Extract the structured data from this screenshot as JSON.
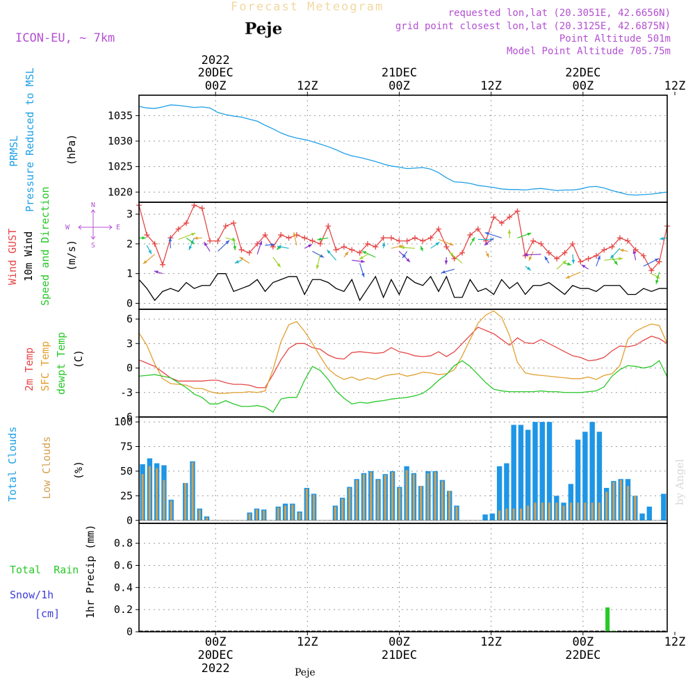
{
  "header": {
    "subtitle": "Forecast Meteogram",
    "location": "Peje",
    "model": "ICON-EU, ~ 7km",
    "requested": "requested lon,lat (20.3051E, 42.6656N)",
    "gridpoint": "grid point closest lon,lat (20.3125E, 42.6875N)",
    "point_alt": "Point Altitude 501m",
    "model_alt": "Model Point Altitude 705.75m",
    "footer_location": "Peje",
    "credit": "by Angel"
  },
  "colors": {
    "pressure": "#1ea0e6",
    "gust": "#e64646",
    "wind": "#000000",
    "temp2m": "#e64646",
    "sfc": "#e0a030",
    "dewpt": "#28c828",
    "totalcloud": "#1e96e6",
    "lowcloud": "#d2a050",
    "rain": "#28c828",
    "snow": "#3c3cdc",
    "purple": "#b450d2",
    "grid": "#999999"
  },
  "chart_data": {
    "type": "meteogram",
    "time_axis": {
      "unit": "hours from 2022-12-19 09Z",
      "range": [
        0,
        69
      ],
      "major_ticks": [
        {
          "hour": 10,
          "label": "00Z",
          "date": "20DEC",
          "year": "2022"
        },
        {
          "hour": 22,
          "label": "12Z"
        },
        {
          "hour": 34,
          "label": "00Z",
          "date": "21DEC"
        },
        {
          "hour": 46,
          "label": "12Z"
        },
        {
          "hour": 58,
          "label": "00Z",
          "date": "22DEC"
        },
        {
          "hour": 70,
          "label": "12Z"
        }
      ]
    },
    "panels": [
      {
        "id": "pressure",
        "type": "line",
        "labels": [
          "PRMSL",
          "Pressure Reduced to MSL"
        ],
        "unit": "(hPa)",
        "ylim": [
          1018,
          1039
        ],
        "yticks": [
          1020,
          1025,
          1030,
          1035
        ],
        "series": [
          {
            "name": "PRMSL",
            "values": [
              1036.8,
              1036.5,
              1036.4,
              1036.7,
              1037.1,
              1037.0,
              1036.8,
              1036.6,
              1036.7,
              1036.5,
              1035.6,
              1035.2,
              1034.9,
              1034.7,
              1034.3,
              1033.9,
              1033.1,
              1032.4,
              1031.6,
              1031.0,
              1030.6,
              1030.3,
              1029.9,
              1029.4,
              1028.9,
              1028.3,
              1027.6,
              1027.1,
              1026.8,
              1026.4,
              1026.0,
              1025.5,
              1025.1,
              1024.9,
              1024.6,
              1024.7,
              1024.8,
              1024.5,
              1023.8,
              1022.8,
              1022.0,
              1021.9,
              1021.7,
              1021.3,
              1021.1,
              1020.9,
              1020.6,
              1020.5,
              1020.5,
              1020.4,
              1020.6,
              1020.7,
              1020.5,
              1020.3,
              1020.4,
              1020.4,
              1020.6,
              1021.0,
              1021.1,
              1020.8,
              1020.3,
              1019.9,
              1019.5,
              1019.4,
              1019.5,
              1019.6,
              1019.8,
              1020.0
            ]
          }
        ]
      },
      {
        "id": "wind",
        "type": "line",
        "labels": [
          "Wind GUST",
          "10m Wind",
          "Speed and Direction"
        ],
        "unit": "(m/s)",
        "compass": {
          "n": "N",
          "s": "S",
          "e": "E",
          "w": "W"
        },
        "ylim": [
          -0.2,
          3.4
        ],
        "yticks": [
          0,
          1,
          2,
          3
        ],
        "series": [
          {
            "name": "Wind GUST",
            "values": [
              3.3,
              2.3,
              2.0,
              1.3,
              2.2,
              2.5,
              2.7,
              3.3,
              3.2,
              2.1,
              2.1,
              2.6,
              2.7,
              1.8,
              1.7,
              2.0,
              2.3,
              1.9,
              2.3,
              2.2,
              2.3,
              2.2,
              2.1,
              2.0,
              2.6,
              1.8,
              1.9,
              1.8,
              1.7,
              2.0,
              1.9,
              2.2,
              2.2,
              2.1,
              2.1,
              2.2,
              2.1,
              2.2,
              2.5,
              1.9,
              1.5,
              1.7,
              2.3,
              2.5,
              2.1,
              2.9,
              2.7,
              2.9,
              3.1,
              1.6,
              2.1,
              2.0,
              1.7,
              1.5,
              1.7,
              2.0,
              1.4,
              1.5,
              1.6,
              1.8,
              1.9,
              2.2,
              2.1,
              1.8,
              1.6,
              1.1,
              1.4,
              2.6
            ]
          },
          {
            "name": "10m Wind",
            "values": [
              0.8,
              0.5,
              0.1,
              0.4,
              0.5,
              0.4,
              0.7,
              0.5,
              0.6,
              0.6,
              1.0,
              1.0,
              0.4,
              0.5,
              0.6,
              0.8,
              0.4,
              0.7,
              0.8,
              0.9,
              0.9,
              0.3,
              0.8,
              0.8,
              0.7,
              0.5,
              0.4,
              0.8,
              0.1,
              0.5,
              0.9,
              0.2,
              0.8,
              0.3,
              0.9,
              0.7,
              0.6,
              0.9,
              0.4,
              0.9,
              0.2,
              0.2,
              0.8,
              0.4,
              0.5,
              0.3,
              0.8,
              0.5,
              0.7,
              0.3,
              0.6,
              0.6,
              0.7,
              0.5,
              0.3,
              0.6,
              0.5,
              0.5,
              0.4,
              0.6,
              0.6,
              0.6,
              0.3,
              0.3,
              0.5,
              0.4,
              0.5,
              0.5
            ]
          }
        ]
      },
      {
        "id": "temperature",
        "type": "line",
        "labels": [
          "2m Temp",
          "SFC Temp",
          "dewpt Temp"
        ],
        "unit": "(C)",
        "ylim": [
          -6,
          7.2
        ],
        "yticks": [
          -6,
          -3,
          0,
          3,
          6
        ],
        "series": [
          {
            "name": "2m Temp",
            "values": [
              1.0,
              0.6,
              0.2,
              -0.5,
              -1.2,
              -1.6,
              -1.6,
              -1.6,
              -1.6,
              -1.5,
              -1.5,
              -1.8,
              -2.0,
              -2.0,
              -2.1,
              -2.4,
              -2.4,
              -0.8,
              1.0,
              2.4,
              3.0,
              3.0,
              2.5,
              2.3,
              1.6,
              1.2,
              1.1,
              1.9,
              2.0,
              1.9,
              1.8,
              1.9,
              2.5,
              2.0,
              1.8,
              1.5,
              1.4,
              1.5,
              2.0,
              1.4,
              2.0,
              3.0,
              4.0,
              5.0,
              4.6,
              4.2,
              3.5,
              2.8,
              3.7,
              3.1,
              3.0,
              3.5,
              3.0,
              2.5,
              2.0,
              1.5,
              1.3,
              0.9,
              1.0,
              1.3,
              2.1,
              2.7,
              2.6,
              2.8,
              3.4,
              3.9,
              3.6,
              3.0
            ]
          },
          {
            "name": "SFC Temp",
            "values": [
              4.3,
              2.8,
              0.5,
              -1.3,
              -1.9,
              -2.0,
              -2.1,
              -2.5,
              -2.5,
              -2.9,
              -3.1,
              -3.1,
              -3.0,
              -3.0,
              -2.9,
              -3.0,
              -2.8,
              -0.2,
              3.2,
              5.3,
              5.7,
              4.5,
              3.0,
              1.4,
              -0.1,
              -0.9,
              -1.4,
              -1.1,
              -1.5,
              -1.2,
              -1.4,
              -1.0,
              -0.8,
              -0.7,
              -1.0,
              -0.8,
              -0.5,
              -0.6,
              -0.8,
              -0.7,
              -0.2,
              1.5,
              3.5,
              5.5,
              6.5,
              7.0,
              6.2,
              4.0,
              0.7,
              -0.6,
              -0.8,
              -0.9,
              -1.0,
              -1.1,
              -1.2,
              -1.3,
              -1.3,
              -1.1,
              -1.4,
              -0.9,
              -0.7,
              0.3,
              3.5,
              4.5,
              5.0,
              5.4,
              5.2,
              3.0
            ]
          },
          {
            "name": "dewpt Temp",
            "values": [
              -1.0,
              -0.9,
              -0.8,
              -1.0,
              -1.2,
              -1.8,
              -2.4,
              -3.2,
              -3.6,
              -4.4,
              -4.4,
              -4.0,
              -4.4,
              -4.7,
              -4.7,
              -4.6,
              -4.8,
              -5.4,
              -3.8,
              -3.6,
              -3.6,
              -1.5,
              0.2,
              -0.3,
              -1.4,
              -2.8,
              -3.7,
              -4.4,
              -4.2,
              -4.3,
              -4.1,
              -4.0,
              -3.8,
              -3.7,
              -3.6,
              -3.4,
              -3.1,
              -2.4,
              -1.5,
              -0.8,
              0.3,
              0.9,
              0.2,
              -0.8,
              -1.8,
              -2.6,
              -2.8,
              -2.9,
              -2.9,
              -2.9,
              -2.9,
              -2.8,
              -2.9,
              -2.9,
              -3.0,
              -3.0,
              -3.0,
              -2.9,
              -2.8,
              -2.3,
              -1.0,
              -0.2,
              0.3,
              0.2,
              0.0,
              0.2,
              0.9,
              -1.1
            ]
          }
        ]
      },
      {
        "id": "clouds",
        "type": "bar",
        "labels": [
          "Total Clouds",
          "Low Clouds"
        ],
        "unit": "(%)",
        "ylim": [
          -3,
          105
        ],
        "yticks": [
          0,
          25,
          50,
          75,
          100
        ],
        "series": [
          {
            "name": "Total Clouds",
            "values": [
              57,
              63,
              58,
              56,
              21,
              0,
              38,
              60,
              12,
              4,
              0,
              0,
              0,
              0,
              0,
              8,
              12,
              11,
              0,
              14,
              17,
              17,
              9,
              33,
              27,
              0,
              0,
              15,
              23,
              34,
              42,
              48,
              50,
              42,
              47,
              50,
              34,
              55,
              48,
              35,
              50,
              50,
              41,
              30,
              15,
              0,
              0,
              0,
              6,
              7,
              55,
              58,
              97,
              97,
              92,
              100,
              100,
              100,
              25,
              18,
              37,
              82,
              90,
              100,
              90,
              33,
              40,
              42,
              42,
              25,
              7,
              14,
              0,
              27
            ]
          },
          {
            "name": "Low Clouds",
            "values": [
              47,
              55,
              53,
              41,
              20,
              0,
              38,
              59,
              11,
              3,
              0,
              0,
              0,
              0,
              0,
              7,
              11,
              10,
              0,
              13,
              15,
              16,
              8,
              32,
              26,
              0,
              0,
              14,
              22,
              33,
              41,
              47,
              49,
              41,
              46,
              49,
              33,
              51,
              47,
              35,
              48,
              49,
              40,
              30,
              14,
              0,
              0,
              0,
              0,
              0,
              10,
              12,
              12,
              12,
              15,
              18,
              18,
              18,
              18,
              15,
              18,
              18,
              18,
              18,
              18,
              29,
              39,
              41,
              35,
              25,
              0,
              0,
              0,
              0
            ]
          }
        ]
      },
      {
        "id": "precip",
        "type": "bar",
        "labels": [
          "1hr Precip (mm)"
        ],
        "legend": {
          "rain": "Total  Rain",
          "snow": "Snow/1h",
          "snow_unit": "[cm]"
        },
        "ylim": [
          0,
          0.98
        ],
        "yticks": [
          0,
          0.2,
          0.4,
          0.6,
          0.8
        ],
        "series": [
          {
            "name": "Total Rain",
            "bars": [
              {
                "hour": 61.2,
                "value": 0.22
              },
              {
                "hour": 62.0,
                "value": 0.01
              }
            ]
          }
        ]
      }
    ]
  }
}
